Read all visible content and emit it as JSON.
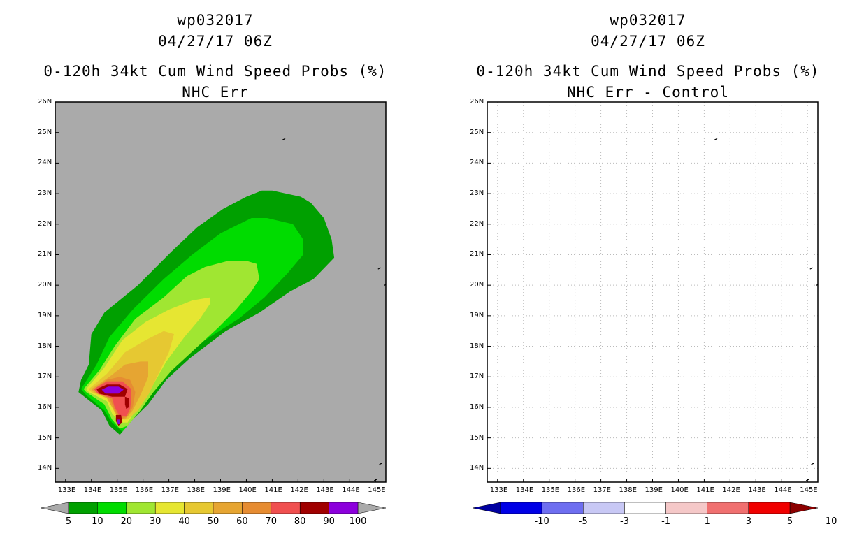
{
  "chart_data": [
    {
      "type": "heatmap",
      "panel": "left",
      "storm_id": "wp032017",
      "datetime": "04/27/17 06Z",
      "title": "0-120h 34kt Cum Wind Speed Probs (%)",
      "subtitle": "NHC Err",
      "x_ticks": [
        "133E",
        "134E",
        "135E",
        "136E",
        "137E",
        "138E",
        "139E",
        "140E",
        "141E",
        "142E",
        "143E",
        "144E",
        "145E"
      ],
      "y_ticks": [
        "14N",
        "15N",
        "16N",
        "17N",
        "18N",
        "19N",
        "20N",
        "21N",
        "22N",
        "23N",
        "24N",
        "25N",
        "26N"
      ],
      "xlim": [
        132.6,
        145.4
      ],
      "ylim": [
        13.55,
        26.0
      ],
      "background": "#aaaaaa",
      "levels": [
        5,
        10,
        20,
        30,
        40,
        50,
        60,
        70,
        80,
        90,
        100
      ],
      "level_colors": [
        "#00a000",
        "#00dc00",
        "#a0e632",
        "#e6e632",
        "#e6c832",
        "#e6a532",
        "#e68c32",
        "#f05050",
        "#a00000",
        "#8c00dc"
      ],
      "colorbar_labels": [
        "5",
        "10",
        "20",
        "30",
        "40",
        "50",
        "60",
        "70",
        "80",
        "90",
        "100"
      ],
      "contours": [
        {
          "level": 5,
          "color": "#00a000",
          "points": [
            [
              133.5,
              16.5
            ],
            [
              133.6,
              16.9
            ],
            [
              133.9,
              17.4
            ],
            [
              134.0,
              18.4
            ],
            [
              134.5,
              19.1
            ],
            [
              135.8,
              20.0
            ],
            [
              137.1,
              21.1
            ],
            [
              138.1,
              21.9
            ],
            [
              139.1,
              22.5
            ],
            [
              140.0,
              22.9
            ],
            [
              140.6,
              23.1
            ],
            [
              141.0,
              23.1
            ],
            [
              142.1,
              22.9
            ],
            [
              142.5,
              22.7
            ],
            [
              143.0,
              22.2
            ],
            [
              143.3,
              21.5
            ],
            [
              143.4,
              20.9
            ],
            [
              142.6,
              20.2
            ],
            [
              141.7,
              19.8
            ],
            [
              140.5,
              19.1
            ],
            [
              139.2,
              18.5
            ],
            [
              137.8,
              17.6
            ],
            [
              136.9,
              16.9
            ],
            [
              136.2,
              16.1
            ],
            [
              135.6,
              15.6
            ],
            [
              135.1,
              15.1
            ],
            [
              134.7,
              15.4
            ],
            [
              134.4,
              15.9
            ],
            [
              133.8,
              16.3
            ]
          ]
        },
        {
          "level": 10,
          "color": "#00dc00",
          "points": [
            [
              133.6,
              16.6
            ],
            [
              134.2,
              17.4
            ],
            [
              134.7,
              18.3
            ],
            [
              135.6,
              19.2
            ],
            [
              136.8,
              20.2
            ],
            [
              137.9,
              21.0
            ],
            [
              139.0,
              21.7
            ],
            [
              140.2,
              22.2
            ],
            [
              140.8,
              22.2
            ],
            [
              141.8,
              22.0
            ],
            [
              142.2,
              21.5
            ],
            [
              142.2,
              21.0
            ],
            [
              141.6,
              20.4
            ],
            [
              140.7,
              19.6
            ],
            [
              139.7,
              18.9
            ],
            [
              138.4,
              18.2
            ],
            [
              137.3,
              17.4
            ],
            [
              136.4,
              16.5
            ],
            [
              135.7,
              15.7
            ],
            [
              135.2,
              15.2
            ],
            [
              134.8,
              15.5
            ],
            [
              134.5,
              15.9
            ],
            [
              133.8,
              16.4
            ]
          ]
        },
        {
          "level": 20,
          "color": "#a0e632",
          "points": [
            [
              133.7,
              16.6
            ],
            [
              134.3,
              17.2
            ],
            [
              134.9,
              18.0
            ],
            [
              135.7,
              18.9
            ],
            [
              136.8,
              19.6
            ],
            [
              137.7,
              20.3
            ],
            [
              138.4,
              20.6
            ],
            [
              139.3,
              20.8
            ],
            [
              140.0,
              20.8
            ],
            [
              140.4,
              20.7
            ],
            [
              140.5,
              20.2
            ],
            [
              140.2,
              19.8
            ],
            [
              139.6,
              19.2
            ],
            [
              138.9,
              18.6
            ],
            [
              138.0,
              17.9
            ],
            [
              137.1,
              17.2
            ],
            [
              136.4,
              16.5
            ],
            [
              135.9,
              15.9
            ],
            [
              135.4,
              15.4
            ],
            [
              135.1,
              15.3
            ],
            [
              134.8,
              15.6
            ],
            [
              134.5,
              16.1
            ],
            [
              133.8,
              16.5
            ]
          ]
        },
        {
          "level": 30,
          "color": "#e6e632",
          "points": [
            [
              133.8,
              16.6
            ],
            [
              134.5,
              17.3
            ],
            [
              135.2,
              18.2
            ],
            [
              136.1,
              18.8
            ],
            [
              137.0,
              19.2
            ],
            [
              137.9,
              19.5
            ],
            [
              138.6,
              19.6
            ],
            [
              138.6,
              19.4
            ],
            [
              138.2,
              18.9
            ],
            [
              137.6,
              18.3
            ],
            [
              136.9,
              17.5
            ],
            [
              136.3,
              16.6
            ],
            [
              135.8,
              16.0
            ],
            [
              135.4,
              15.5
            ],
            [
              135.1,
              15.5
            ],
            [
              134.8,
              15.8
            ],
            [
              134.6,
              16.2
            ],
            [
              133.9,
              16.5
            ]
          ]
        },
        {
          "level": 40,
          "color": "#e6c832",
          "points": [
            [
              133.9,
              16.6
            ],
            [
              134.6,
              17.1
            ],
            [
              135.3,
              17.8
            ],
            [
              136.1,
              18.2
            ],
            [
              136.8,
              18.5
            ],
            [
              137.2,
              18.4
            ],
            [
              137.0,
              17.8
            ],
            [
              136.6,
              17.1
            ],
            [
              136.2,
              16.4
            ],
            [
              135.8,
              15.9
            ],
            [
              135.4,
              15.6
            ],
            [
              135.1,
              15.6
            ],
            [
              134.9,
              15.9
            ],
            [
              134.6,
              16.3
            ],
            [
              134.0,
              16.5
            ]
          ]
        },
        {
          "level": 50,
          "color": "#e6a532",
          "points": [
            [
              134.0,
              16.6
            ],
            [
              134.7,
              17.0
            ],
            [
              135.3,
              17.4
            ],
            [
              135.9,
              17.5
            ],
            [
              136.2,
              17.5
            ],
            [
              136.2,
              17.0
            ],
            [
              135.9,
              16.4
            ],
            [
              135.6,
              15.9
            ],
            [
              135.3,
              15.6
            ],
            [
              135.0,
              15.7
            ],
            [
              134.8,
              16.0
            ],
            [
              134.6,
              16.3
            ],
            [
              134.1,
              16.5
            ]
          ]
        },
        {
          "level": 60,
          "color": "#e68c32",
          "points": [
            [
              134.1,
              16.6
            ],
            [
              134.6,
              16.9
            ],
            [
              135.1,
              17.0
            ],
            [
              135.5,
              16.9
            ],
            [
              135.7,
              16.5
            ],
            [
              135.6,
              16.0
            ],
            [
              135.4,
              15.7
            ],
            [
              135.1,
              15.6
            ],
            [
              134.9,
              15.9
            ],
            [
              134.7,
              16.3
            ],
            [
              134.2,
              16.5
            ]
          ]
        },
        {
          "level": 70,
          "color": "#f05050",
          "points": [
            [
              134.1,
              16.6
            ],
            [
              134.6,
              16.85
            ],
            [
              135.2,
              16.85
            ],
            [
              135.55,
              16.6
            ],
            [
              135.55,
              16.3
            ],
            [
              135.5,
              15.95
            ],
            [
              135.35,
              15.7
            ],
            [
              135.1,
              15.7
            ],
            [
              134.9,
              16.0
            ],
            [
              134.8,
              16.3
            ],
            [
              134.25,
              16.45
            ]
          ]
        },
        {
          "level": 80,
          "color": "#a00000",
          "points": [
            [
              134.2,
              16.6
            ],
            [
              134.6,
              16.75
            ],
            [
              135.1,
              16.75
            ],
            [
              135.4,
              16.6
            ],
            [
              135.3,
              16.35
            ],
            [
              134.8,
              16.35
            ],
            [
              134.3,
              16.45
            ]
          ]
        },
        {
          "level": 90,
          "color": "#a00000",
          "points": [
            [
              135.3,
              16.35
            ],
            [
              135.45,
              16.3
            ],
            [
              135.45,
              16.0
            ],
            [
              135.35,
              15.95
            ],
            [
              135.3,
              16.1
            ]
          ]
        },
        {
          "level": 90,
          "color": "#a00000",
          "points": [
            [
              134.95,
              15.75
            ],
            [
              135.15,
              15.75
            ],
            [
              135.2,
              15.5
            ],
            [
              135.05,
              15.4
            ],
            [
              134.95,
              15.55
            ]
          ]
        },
        {
          "level": 100,
          "color": "#8c00dc",
          "points": [
            [
              134.4,
              16.58
            ],
            [
              134.65,
              16.68
            ],
            [
              135.05,
              16.68
            ],
            [
              135.25,
              16.58
            ],
            [
              135.05,
              16.45
            ],
            [
              134.55,
              16.45
            ]
          ]
        },
        {
          "level": 100,
          "color": "#8c00dc",
          "points": [
            [
              135.0,
              15.6
            ],
            [
              135.1,
              15.6
            ],
            [
              135.1,
              15.45
            ],
            [
              135.02,
              15.45
            ]
          ]
        }
      ]
    },
    {
      "type": "heatmap",
      "panel": "right",
      "storm_id": "wp032017",
      "datetime": "04/27/17 06Z",
      "title": "0-120h 34kt Cum Wind Speed Probs (%)",
      "subtitle": "NHC Err - Control",
      "x_ticks": [
        "133E",
        "134E",
        "135E",
        "136E",
        "137E",
        "138E",
        "139E",
        "140E",
        "141E",
        "142E",
        "143E",
        "144E",
        "145E"
      ],
      "y_ticks": [
        "14N",
        "15N",
        "16N",
        "17N",
        "18N",
        "19N",
        "20N",
        "21N",
        "22N",
        "23N",
        "24N",
        "25N",
        "26N"
      ],
      "xlim": [
        132.6,
        145.4
      ],
      "ylim": [
        13.55,
        26.0
      ],
      "background": "#ffffff",
      "grid": true,
      "levels": [
        -10,
        -5,
        -3,
        -1,
        1,
        3,
        5,
        10
      ],
      "level_colors": [
        "#0000a0",
        "#0000e6",
        "#6e6ef0",
        "#c8c8f5",
        "#ffffff",
        "#f5c8c8",
        "#f07070",
        "#f00000",
        "#8c0000"
      ],
      "colorbar_labels": [
        "-10",
        "-5",
        "-3",
        "-1",
        "1",
        "3",
        "5",
        "10"
      ]
    }
  ]
}
